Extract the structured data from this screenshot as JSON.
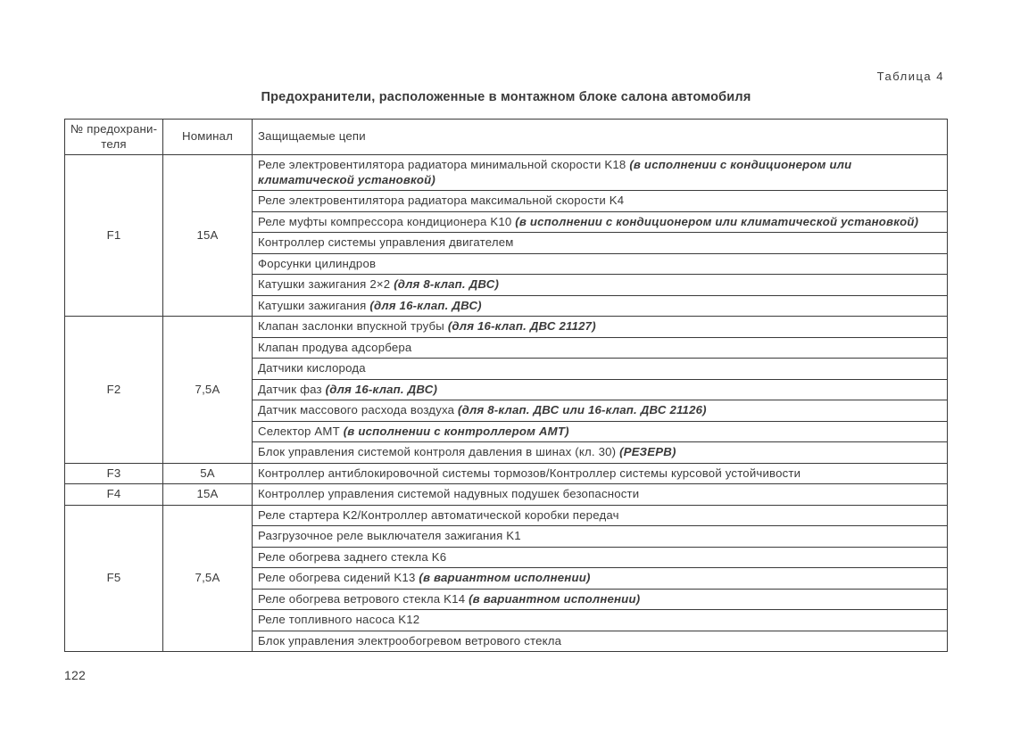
{
  "tableLabel": "Таблица 4",
  "title": "Предохранители, расположенные в монтажном блоке салона автомобиля",
  "headers": {
    "fuse": "№ предохрани­теля",
    "nominal": "Номинал",
    "circuits": "Защищаемые цепи"
  },
  "groups": [
    {
      "fuse": "F1",
      "nominal": "15А",
      "rows": [
        [
          {
            "t": "Реле электровентилятора радиатора минимальной скорости K18 "
          },
          {
            "t": "(в исполнении с кондиционером или климатической установкой)",
            "em": true
          }
        ],
        [
          {
            "t": "Реле электровентилятора радиатора максимальной скорости K4"
          }
        ],
        [
          {
            "t": "Реле муфты компрессора кондиционера K10 "
          },
          {
            "t": "(в исполнении с кондиционером или климатической установкой)",
            "em": true
          }
        ],
        [
          {
            "t": "Контроллер системы управления двигателем"
          }
        ],
        [
          {
            "t": "Форсунки цилиндров"
          }
        ],
        [
          {
            "t": "Катушки зажигания 2×2 "
          },
          {
            "t": "(для 8-клап. ДВС)",
            "em": true
          }
        ],
        [
          {
            "t": "Катушки зажигания "
          },
          {
            "t": "(для 16-клап. ДВС)",
            "em": true
          }
        ]
      ]
    },
    {
      "fuse": "F2",
      "nominal": "7,5А",
      "rows": [
        [
          {
            "t": "Клапан заслонки впускной трубы "
          },
          {
            "t": "(для 16-клап. ДВС 21127)",
            "em": true
          }
        ],
        [
          {
            "t": "Клапан продува адсорбера"
          }
        ],
        [
          {
            "t": "Датчики кислорода"
          }
        ],
        [
          {
            "t": "Датчик фаз "
          },
          {
            "t": "(для 16-клап. ДВС)",
            "em": true
          }
        ],
        [
          {
            "t": "Датчик массового расхода воздуха "
          },
          {
            "t": "(для 8-клап. ДВС или 16-клап. ДВС 21126)",
            "em": true
          }
        ],
        [
          {
            "t": "Селектор АМТ "
          },
          {
            "t": "(в исполнении с контроллером АМТ)",
            "em": true
          }
        ],
        [
          {
            "t": "Блок управления системой контроля давления в шинах (кл. 30) "
          },
          {
            "t": "(РЕЗЕРВ)",
            "em": true
          }
        ]
      ]
    },
    {
      "fuse": "F3",
      "nominal": "5А",
      "rows": [
        [
          {
            "t": "Контроллер антиблокировочной системы тормозов/Контроллер системы курсовой устойчивости"
          }
        ]
      ]
    },
    {
      "fuse": "F4",
      "nominal": "15А",
      "rows": [
        [
          {
            "t": "Контроллер управления системой надувных подушек безопасности"
          }
        ]
      ]
    },
    {
      "fuse": "F5",
      "nominal": "7,5А",
      "rows": [
        [
          {
            "t": "Реле стартера K2/Контроллер автоматической коробки передач"
          }
        ],
        [
          {
            "t": "Разгрузочное реле выключателя зажигания K1"
          }
        ],
        [
          {
            "t": "Реле обогрева заднего стекла K6"
          }
        ],
        [
          {
            "t": "Реле обогрева сидений K13 "
          },
          {
            "t": "(в вариантном исполнении)",
            "em": true
          }
        ],
        [
          {
            "t": "Реле обогрева ветрового стекла K14 "
          },
          {
            "t": "(в вариантном исполнении)",
            "em": true
          }
        ],
        [
          {
            "t": "Реле топливного насоса K12"
          }
        ],
        [
          {
            "t": "Блок управления электрообогревом ветрового стекла"
          }
        ]
      ]
    }
  ],
  "pageNumber": "122"
}
